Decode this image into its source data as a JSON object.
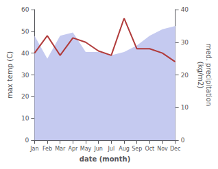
{
  "chart_data": {
    "type": "line",
    "xlabel": "date (month)",
    "ylabel": "max temp (C)",
    "y2label": "med. precipitation\n(kg/m2)",
    "categories": [
      "Jan",
      "Feb",
      "Mar",
      "Apr",
      "May",
      "Jun",
      "Jul",
      "Aug",
      "Sep",
      "Oct",
      "Nov",
      "Dec"
    ],
    "series": [
      {
        "type": "area",
        "color": "#c5caf0",
        "axis": "y2",
        "values": [
          32,
          25,
          32,
          33,
          27,
          27,
          26,
          27,
          29,
          32,
          34,
          35
        ]
      },
      {
        "type": "line",
        "color": "#b03a3a",
        "values": [
          40,
          48,
          39,
          47,
          45,
          41,
          39,
          56,
          42,
          42,
          40,
          36
        ]
      }
    ],
    "ylim": [
      0,
      60
    ],
    "yticks": [
      0,
      10,
      20,
      30,
      40,
      50,
      60
    ],
    "y2lim": [
      0,
      40
    ],
    "y2ticks": [
      0,
      10,
      20,
      30,
      40
    ],
    "grid": false
  }
}
